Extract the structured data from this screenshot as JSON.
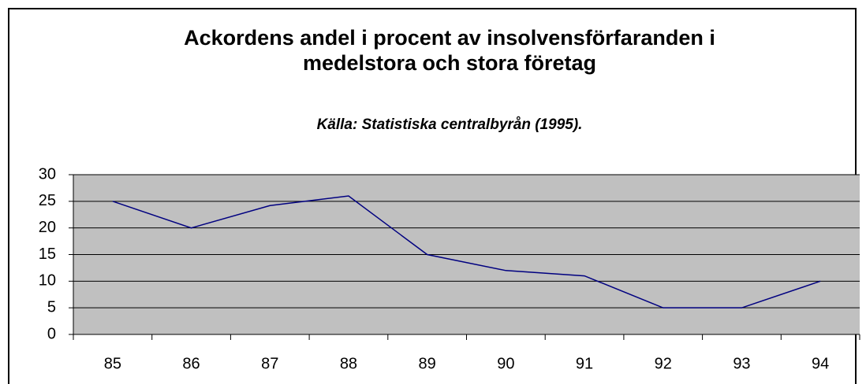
{
  "chart_data": {
    "type": "line",
    "title": "Ackordens andel i procent av insolvensförfaranden i medelstora och stora företag",
    "subtitle": "Källa: Statistiska centralbyrån (1995).",
    "categories": [
      "85",
      "86",
      "87",
      "88",
      "89",
      "90",
      "91",
      "92",
      "93",
      "94"
    ],
    "values": [
      25,
      20,
      24.2,
      26,
      15,
      12,
      11,
      5,
      5,
      10
    ],
    "color": "#000080",
    "ylim": [
      0,
      30
    ],
    "yticks": [
      0,
      5,
      10,
      15,
      20,
      25,
      30
    ],
    "grid": true
  }
}
